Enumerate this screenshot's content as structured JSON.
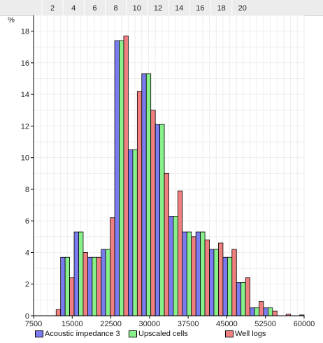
{
  "chart_data": {
    "type": "bar",
    "ylabel": "%",
    "x_ticks": [
      "7500",
      "15000",
      "22500",
      "30000",
      "37500",
      "45000",
      "52500",
      "60000"
    ],
    "x_tick_values": [
      7500,
      15000,
      22500,
      30000,
      37500,
      45000,
      52500,
      60000
    ],
    "top_ticks": [
      "2",
      "4",
      "6",
      "8",
      "10",
      "12",
      "14",
      "16",
      "18",
      "20"
    ],
    "y_ticks": [
      "0",
      "2",
      "4",
      "6",
      "8",
      "10",
      "12",
      "14",
      "16",
      "18"
    ],
    "xlim": [
      7500,
      60000
    ],
    "ylim": [
      0,
      19
    ],
    "bin_starts": [
      10125,
      12750,
      15375,
      18000,
      20625,
      23250,
      25875,
      28500,
      31125,
      33750,
      36375,
      39000,
      41625,
      44250,
      46875,
      49500,
      52125,
      54750,
      57375
    ],
    "bin_width": 2625,
    "series": [
      {
        "name": "Acoustic impedance 3",
        "color": "#7b7bf0",
        "values": [
          0,
          3.7,
          5.3,
          3.7,
          4.2,
          17.4,
          10.5,
          15.3,
          12.1,
          6.3,
          5.3,
          5.3,
          4.2,
          3.7,
          2.1,
          0.5,
          0.5,
          0,
          0
        ]
      },
      {
        "name": "Upscaled cells",
        "color": "#88f088",
        "values": [
          0,
          3.7,
          5.3,
          3.7,
          4.2,
          17.4,
          10.5,
          15.3,
          12.1,
          6.3,
          5.3,
          5.3,
          4.2,
          3.7,
          2.1,
          0.5,
          0.5,
          0,
          0
        ]
      },
      {
        "name": "Well logs",
        "color": "#f08080",
        "values": [
          0.4,
          2.4,
          4.0,
          3.7,
          6.2,
          17.7,
          14.2,
          13.0,
          9.0,
          7.9,
          5.0,
          4.8,
          4.6,
          4.2,
          2.4,
          0.9,
          0.3,
          0.1,
          0.05
        ]
      }
    ],
    "grid": true,
    "legend_position": "bottom"
  }
}
